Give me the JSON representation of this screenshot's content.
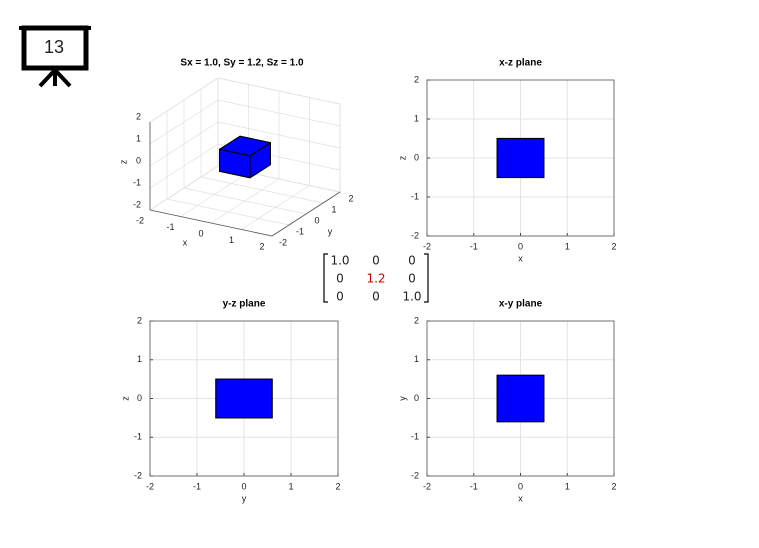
{
  "slide_number": "13",
  "matrix": {
    "rows": [
      [
        "1.0",
        "0",
        "0"
      ],
      [
        "0",
        "1.2",
        "0"
      ],
      [
        "0",
        "0",
        "1.0"
      ]
    ],
    "highlight_color": "#d00000"
  },
  "chart_data": [
    {
      "type": "box3d",
      "title": "Sx = 1.0, Sy = 1.2, Sz = 1.0",
      "xlabel": "x",
      "ylabel": "y",
      "zlabel": "z",
      "xlim": [
        -2,
        2
      ],
      "ylim": [
        -2,
        2
      ],
      "zlim": [
        -2,
        2
      ],
      "xticks": [
        -2,
        -1,
        0,
        1,
        2
      ],
      "yticks": [
        -2,
        -1,
        0,
        1,
        2
      ],
      "zticks": [
        -2,
        -1,
        0,
        1,
        2
      ],
      "box": {
        "x": [
          -0.5,
          0.5
        ],
        "y": [
          -0.6,
          0.6
        ],
        "z": [
          -0.5,
          0.5
        ]
      },
      "color": "#0000ff",
      "grid": true
    },
    {
      "type": "rect2d",
      "title": "x-z plane",
      "xlabel": "x",
      "ylabel": "z",
      "xlim": [
        -2,
        2
      ],
      "ylim": [
        -2,
        2
      ],
      "xticks": [
        -2,
        -1,
        0,
        1,
        2
      ],
      "yticks": [
        -2,
        -1,
        0,
        1,
        2
      ],
      "rect": {
        "x": [
          -0.5,
          0.5
        ],
        "y": [
          -0.5,
          0.5
        ]
      },
      "color": "#0000ff",
      "grid": true
    },
    {
      "type": "rect2d",
      "title": "y-z plane",
      "xlabel": "y",
      "ylabel": "z",
      "xlim": [
        -2,
        2
      ],
      "ylim": [
        -2,
        2
      ],
      "xticks": [
        -2,
        -1,
        0,
        1,
        2
      ],
      "yticks": [
        -2,
        -1,
        0,
        1,
        2
      ],
      "rect": {
        "x": [
          -0.6,
          0.6
        ],
        "y": [
          -0.5,
          0.5
        ]
      },
      "color": "#0000ff",
      "grid": true
    },
    {
      "type": "rect2d",
      "title": "x-y plane",
      "xlabel": "x",
      "ylabel": "y",
      "xlim": [
        -2,
        2
      ],
      "ylim": [
        -2,
        2
      ],
      "xticks": [
        -2,
        -1,
        0,
        1,
        2
      ],
      "yticks": [
        -2,
        -1,
        0,
        1,
        2
      ],
      "rect": {
        "x": [
          -0.5,
          0.5
        ],
        "y": [
          -0.6,
          0.6
        ]
      },
      "color": "#0000ff",
      "grid": true
    }
  ]
}
